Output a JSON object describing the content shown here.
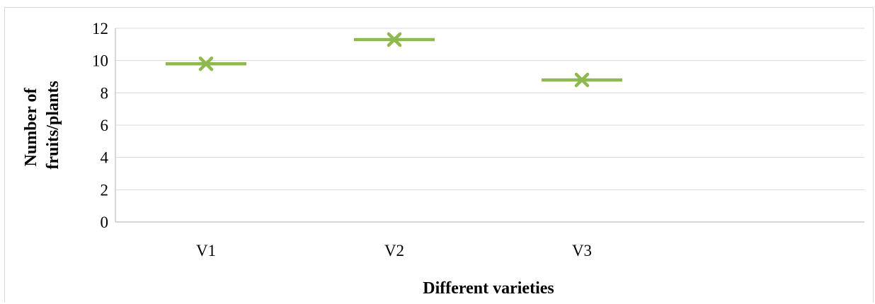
{
  "chart_data": {
    "type": "scatter",
    "title": "",
    "xlabel": "Different varieties",
    "ylabel_lines": [
      "Number of",
      "fruits/plants"
    ],
    "categories": [
      "V1",
      "V2",
      "V3"
    ],
    "series": [
      {
        "values": [
          9.8,
          11.3,
          8.8
        ],
        "color": "#8fb84e",
        "marker": "x",
        "bar_style": "horizontal-dash"
      }
    ],
    "ylim": [
      0,
      12
    ],
    "yticks": [
      0,
      2,
      4,
      6,
      8,
      10,
      12
    ],
    "grid": true,
    "legend": "none",
    "colors": {
      "grid": "#d9d9d9",
      "axis": "#bfbfbf",
      "text": "#000000"
    }
  }
}
